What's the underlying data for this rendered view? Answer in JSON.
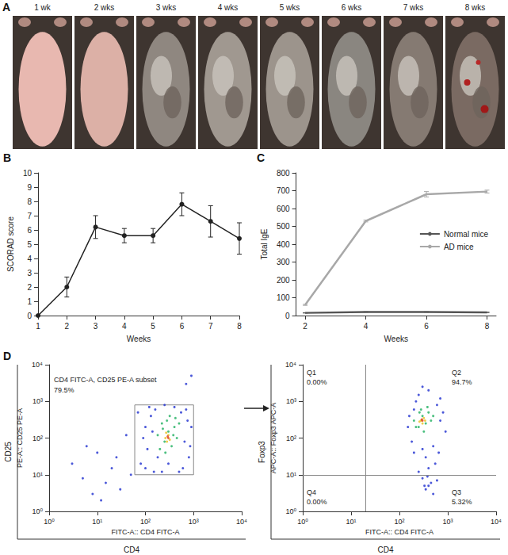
{
  "photos": {
    "panel": "A",
    "labels": [
      "1 wk",
      "2 wks",
      "3 wks",
      "4 wks",
      "5 wks",
      "6 wks",
      "7 wks",
      "8 wks"
    ]
  },
  "chart_data": [
    {
      "panel": "B",
      "type": "line",
      "xlabel": "Weeks",
      "ylabel": "SCORAD score",
      "x": [
        1,
        2,
        3,
        4,
        5,
        6,
        7,
        8
      ],
      "values": [
        0,
        2,
        6.2,
        5.6,
        5.6,
        7.8,
        6.6,
        5.4
      ],
      "errors": [
        0,
        0.7,
        0.8,
        0.5,
        0.5,
        0.8,
        1.1,
        1.1
      ],
      "color": "#222222",
      "marker": "circle",
      "xlim": [
        1,
        8
      ],
      "xticks": [
        1,
        2,
        3,
        4,
        5,
        6,
        7,
        8
      ],
      "ylim": [
        0,
        10
      ],
      "yticks": [
        0,
        1,
        2,
        3,
        4,
        5,
        6,
        7,
        8,
        9,
        10
      ],
      "grid": false
    },
    {
      "panel": "C",
      "type": "line",
      "xlabel": "Weeks",
      "ylabel": "Total IgE",
      "x": [
        2,
        4,
        6,
        8
      ],
      "series": [
        {
          "name": "Normal mice",
          "color": "#555555",
          "values": [
            15,
            20,
            20,
            18
          ],
          "errors": [
            1,
            1,
            1,
            1
          ]
        },
        {
          "name": "AD mice",
          "color": "#a8a8a8",
          "values": [
            60,
            530,
            680,
            695
          ],
          "errors": [
            3,
            5,
            15,
            8
          ]
        }
      ],
      "marker": "none",
      "xlim": [
        1.7,
        8.3
      ],
      "xticks": [
        2,
        4,
        6,
        8
      ],
      "ylim": [
        0,
        800
      ],
      "yticks": [
        0,
        100,
        200,
        300,
        400,
        500,
        600,
        700,
        800
      ],
      "legend": "right",
      "grid": false
    },
    {
      "panel": "D",
      "type": "scatter",
      "xlabel": "FITC-A:: CD4 FITC-A",
      "ylabel": "PE-A:: CD25 PE-A",
      "outer_xlabel": "CD4",
      "outer_ylabel": "CD25",
      "log": true,
      "marker": "circle",
      "xlim": [
        1,
        10000
      ],
      "xticks": [
        {
          "value": 1,
          "label": "10⁰"
        },
        {
          "value": 10,
          "label": "10¹"
        },
        {
          "value": 100,
          "label": "10²"
        },
        {
          "value": 1000,
          "label": "10³"
        },
        {
          "value": 10000,
          "label": "10⁴"
        }
      ],
      "ylim": [
        1,
        10000
      ],
      "yticks": [
        {
          "value": 1,
          "label": "10⁰"
        },
        {
          "value": 10,
          "label": "10¹"
        },
        {
          "value": 100,
          "label": "10²"
        },
        {
          "value": 1000,
          "label": "10³"
        },
        {
          "value": 10000,
          "label": "10⁴"
        }
      ],
      "series": [
        {
          "color": "#1f2fd0",
          "points": [
            [
              3,
              20
            ],
            [
              5,
              8
            ],
            [
              8,
              3
            ],
            [
              10,
              40
            ],
            [
              15,
              6
            ],
            [
              20,
              15
            ],
            [
              25,
              30
            ],
            [
              30,
              4
            ],
            [
              40,
              120
            ],
            [
              6,
              60
            ],
            [
              12,
              2
            ],
            [
              50,
              10
            ],
            [
              70,
              500
            ],
            [
              700,
              3000
            ],
            [
              900,
              5000
            ],
            [
              80,
              20
            ],
            [
              100,
              15
            ],
            [
              150,
              12
            ],
            [
              600,
              15
            ],
            [
              800,
              30
            ],
            [
              900,
              200
            ],
            [
              700,
              600
            ],
            [
              120,
              700
            ],
            [
              100,
              200
            ],
            [
              110,
              50
            ],
            [
              130,
              400
            ],
            [
              500,
              12
            ],
            [
              400,
              700
            ],
            [
              250,
              800
            ],
            [
              180,
              30
            ],
            [
              650,
              80
            ],
            [
              750,
              300
            ],
            [
              90,
              100
            ],
            [
              160,
              600
            ],
            [
              550,
              500
            ],
            [
              300,
              20
            ],
            [
              220,
              12
            ],
            [
              140,
              150
            ],
            [
              850,
              60
            ]
          ]
        },
        {
          "color": "#20b060",
          "points": [
            [
              200,
              50
            ],
            [
              250,
              80
            ],
            [
              300,
              150
            ],
            [
              350,
              60
            ],
            [
              400,
              200
            ],
            [
              220,
              250
            ],
            [
              280,
              300
            ],
            [
              450,
              100
            ],
            [
              500,
              250
            ],
            [
              180,
              120
            ],
            [
              320,
              400
            ],
            [
              260,
              40
            ],
            [
              380,
              120
            ],
            [
              420,
              350
            ],
            [
              230,
              180
            ]
          ]
        },
        {
          "color": "#e8c020",
          "points": [
            [
              260,
              100
            ],
            [
              300,
              120
            ],
            [
              280,
              80
            ],
            [
              320,
              90
            ],
            [
              270,
              140
            ]
          ]
        },
        {
          "color": "#e04020",
          "points": [
            [
              290,
              110
            ],
            [
              300,
              100
            ]
          ]
        }
      ],
      "gate": {
        "x": [
          60,
          1000
        ],
        "y": [
          10,
          800
        ],
        "label": "CD4 FITC-A, CD25 PE-A subset",
        "percent": "79.5%"
      },
      "grid": false
    },
    {
      "type": "scatter",
      "xlabel": "FITC-A:: CD4 FITC-A",
      "ylabel": "APC-A:: Foxp3 APC-A",
      "outer_xlabel": "CD4",
      "outer_ylabel": "Foxp3",
      "log": true,
      "marker": "circle",
      "xlim": [
        1,
        10000
      ],
      "xticks": [
        {
          "value": 1,
          "label": "10⁰"
        },
        {
          "value": 10,
          "label": "10¹"
        },
        {
          "value": 100,
          "label": "10²"
        },
        {
          "value": 1000,
          "label": "10³"
        },
        {
          "value": 10000,
          "label": "10⁴"
        }
      ],
      "ylim": [
        1,
        10000
      ],
      "yticks": [
        {
          "value": 1,
          "label": "10⁰"
        },
        {
          "value": 10,
          "label": "10¹"
        },
        {
          "value": 100,
          "label": "10²"
        },
        {
          "value": 1000,
          "label": "10³"
        },
        {
          "value": 10000,
          "label": "10⁴"
        }
      ],
      "series": [
        {
          "color": "#1f2fd0",
          "points": [
            [
              200,
              600
            ],
            [
              150,
              200
            ],
            [
              250,
              1500
            ],
            [
              400,
              2000
            ],
            [
              600,
              800
            ],
            [
              700,
              300
            ],
            [
              180,
              80
            ],
            [
              300,
              50
            ],
            [
              500,
              60
            ],
            [
              350,
              30
            ],
            [
              400,
              15
            ],
            [
              300,
              8
            ],
            [
              450,
              6
            ],
            [
              350,
              4
            ],
            [
              500,
              3
            ],
            [
              600,
              7
            ],
            [
              250,
              12
            ],
            [
              550,
              20
            ],
            [
              650,
              40
            ],
            [
              800,
              500
            ],
            [
              900,
              150
            ],
            [
              160,
              400
            ],
            [
              220,
              1000
            ],
            [
              700,
              1200
            ],
            [
              300,
              2500
            ],
            [
              200,
              40
            ],
            [
              400,
              5
            ],
            [
              380,
              9
            ],
            [
              330,
              5
            ]
          ]
        },
        {
          "color": "#20b060",
          "points": [
            [
              250,
              200
            ],
            [
              300,
              400
            ],
            [
              350,
              250
            ],
            [
              200,
              300
            ],
            [
              400,
              500
            ],
            [
              450,
              300
            ],
            [
              280,
              600
            ],
            [
              320,
              150
            ],
            [
              380,
              700
            ],
            [
              260,
              500
            ],
            [
              500,
              400
            ],
            [
              220,
              200
            ]
          ]
        },
        {
          "color": "#e8c020",
          "points": [
            [
              280,
              300
            ],
            [
              320,
              350
            ],
            [
              300,
              250
            ],
            [
              260,
              280
            ],
            [
              340,
              300
            ]
          ]
        },
        {
          "color": "#e04020",
          "points": [
            [
              300,
              300
            ],
            [
              290,
              320
            ]
          ]
        }
      ],
      "quadrant_lines": {
        "x": 20,
        "y": 10
      },
      "quadrants": [
        {
          "name": "Q1",
          "percent": "0.00%"
        },
        {
          "name": "Q2",
          "percent": "94.7%"
        },
        {
          "name": "Q3",
          "percent": "5.32%"
        },
        {
          "name": "Q4",
          "percent": "0.00%"
        }
      ],
      "grid": false
    }
  ]
}
